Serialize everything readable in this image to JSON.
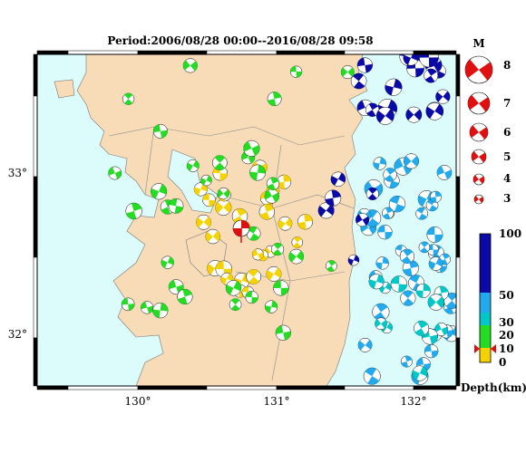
{
  "title": "Period:2006/08/28 00:00--2016/08/28 09:58",
  "axes": {
    "x_ticks": [
      "130°",
      "131°",
      "132°"
    ],
    "y_ticks": [
      "33°",
      "32°"
    ]
  },
  "legend": {
    "header": "M",
    "magnitudes": [
      "8",
      "7",
      "6",
      "5",
      "4",
      "3"
    ],
    "depth_ticks": [
      "100",
      "50",
      "30",
      "20",
      "10",
      "0"
    ],
    "depth_label": "Depth(km)",
    "depth_colors": {
      "shallow": "#f5d200",
      "mid": "#22dd22",
      "deep1": "#22aaee",
      "deep2": "#00c8c8",
      "deepest": "#0a0aa8"
    }
  },
  "colors": {
    "sea": "#dcfcfc",
    "land": "#f8dcb8",
    "epicenter": "#e01010"
  },
  "events": {
    "shallow_count": 28,
    "green_count": 36,
    "cyan_count": 44,
    "deep_count": 20
  }
}
